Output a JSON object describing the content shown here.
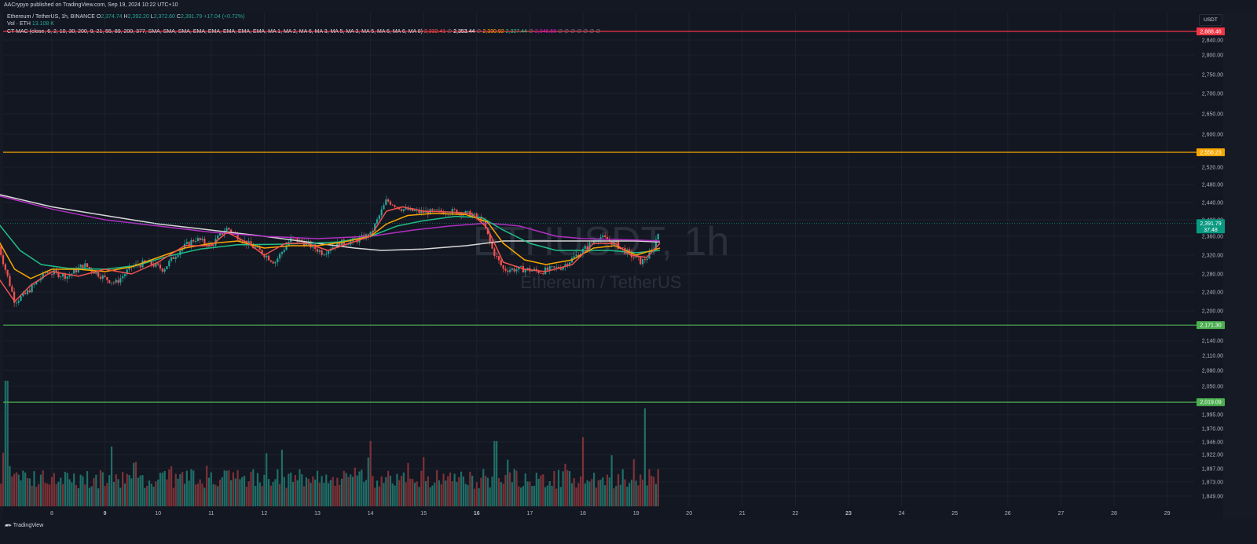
{
  "publisher": "AACrypyo published on TradingView.com, Sep 19, 2024 10:22 UTC+10",
  "legend": {
    "symbol": "Ethereum / TetherUS, 1h, BINANCE",
    "o_label": "O",
    "o": "2,374.74",
    "h_label": "H",
    "h": "2,392.20",
    "l_label": "L",
    "l": "2,372.60",
    "c_label": "C",
    "c": "2,391.79",
    "change": "+17.04 (+0.72%)",
    "vol_label": "Vol · ETH",
    "vol_value": "13.108 K",
    "ma_label": "CT MAC (close, 6, 2, 10, 30, 200, 9, 21, 55, 89, 200, 377, SMA, SMA, SMA, EMA, EMA, EMA, EMA, EMA, MA 1, MA 2, MA 6, MA 3, MA 5, MA 3, MA 5, MA 6, MA 6, MA 8)",
    "ma_values": [
      {
        "text": "2,332.41",
        "color": "#ef5350"
      },
      {
        "text": "∅",
        "color": "#787b86"
      },
      {
        "text": "2,353.44",
        "color": "#ffffff"
      },
      {
        "text": "∅",
        "color": "#787b86"
      },
      {
        "text": "2,330.92",
        "color": "#f7a600"
      },
      {
        "text": "2,327.44",
        "color": "#26c281"
      },
      {
        "text": "∅",
        "color": "#787b86"
      },
      {
        "text": "2,346.56",
        "color": "#c218c9"
      },
      {
        "text": "∅ ∅ ∅ ∅ ∅ ∅ ∅",
        "color": "#787b86"
      }
    ]
  },
  "currency_button": "USDT",
  "watermark": {
    "symbol": "ETHUSDT, 1h",
    "name": "Ethereum / TetherUS"
  },
  "footer_logo": "TradingView",
  "colors": {
    "up": "#26a69a",
    "down": "#ef5350",
    "background": "#131722"
  },
  "chart_data": {
    "type": "candlestick",
    "y_ticks": [
      "2,840.00",
      "2,800.00",
      "2,750.00",
      "2,700.00",
      "2,650.00",
      "2,600.00",
      "2,520.00",
      "2,480.00",
      "2,440.00",
      "2,400.00",
      "2,360.00",
      "2,320.00",
      "2,280.00",
      "2,240.00",
      "2,200.00",
      "2,140.00",
      "2,110.00",
      "2,080.00",
      "2,050.00",
      "1,995.00",
      "1,970.00",
      "1,946.00",
      "1,922.00",
      "1,897.00",
      "1,873.00",
      "1,849.00"
    ],
    "x_ticks": [
      "8",
      "9",
      "10",
      "11",
      "12",
      "13",
      "14",
      "15",
      "16",
      "17",
      "18",
      "19",
      "20",
      "21",
      "22",
      "23",
      "24",
      "25",
      "26",
      "27",
      "28",
      "29"
    ],
    "bold_x_ticks": [
      "9",
      "16",
      "23"
    ],
    "horizontal_levels": [
      {
        "value": 2888.46,
        "label": "2,888.46",
        "color": "#f23645"
      },
      {
        "value": 2556.23,
        "label": "2,556.23",
        "color": "#f7a600"
      },
      {
        "value": 2171.3,
        "label": "2,171.30",
        "color": "#4caf50"
      },
      {
        "value": 2019.09,
        "label": "2,019.09",
        "color": "#4caf50"
      }
    ],
    "last_price": {
      "label": "2,391.79",
      "countdown": "37:48",
      "color": "#089981"
    },
    "series": {
      "price_path": [
        [
          7.0,
          2340
        ],
        [
          7.3,
          2220
        ],
        [
          7.5,
          2235
        ],
        [
          7.9,
          2285
        ],
        [
          8.3,
          2275
        ],
        [
          8.6,
          2300
        ],
        [
          9.0,
          2270
        ],
        [
          9.2,
          2260
        ],
        [
          9.5,
          2295
        ],
        [
          9.8,
          2305
        ],
        [
          10.1,
          2290
        ],
        [
          10.4,
          2330
        ],
        [
          10.7,
          2355
        ],
        [
          11.0,
          2340
        ],
        [
          11.3,
          2380
        ],
        [
          11.6,
          2350
        ],
        [
          11.9,
          2330
        ],
        [
          12.2,
          2305
        ],
        [
          12.5,
          2355
        ],
        [
          12.8,
          2345
        ],
        [
          13.1,
          2325
        ],
        [
          13.4,
          2345
        ],
        [
          13.7,
          2350
        ],
        [
          14.0,
          2365
        ],
        [
          14.3,
          2445
        ],
        [
          14.6,
          2425
        ],
        [
          14.9,
          2418
        ],
        [
          15.3,
          2418
        ],
        [
          15.6,
          2420
        ],
        [
          15.9,
          2412
        ],
        [
          16.1,
          2400
        ],
        [
          16.3,
          2330
        ],
        [
          16.5,
          2290
        ],
        [
          16.9,
          2290
        ],
        [
          17.2,
          2285
        ],
        [
          17.6,
          2295
        ],
        [
          18.0,
          2330
        ],
        [
          18.3,
          2360
        ],
        [
          18.6,
          2345
        ],
        [
          18.9,
          2320
        ],
        [
          19.1,
          2305
        ],
        [
          19.3,
          2325
        ],
        [
          19.45,
          2380
        ]
      ],
      "ma_lines": [
        {
          "name": "white",
          "color": "#d8d8d8",
          "points": [
            [
              7.0,
              2458
            ],
            [
              8.0,
              2430
            ],
            [
              9.0,
              2410
            ],
            [
              10.0,
              2390
            ],
            [
              11.0,
              2375
            ],
            [
              12.0,
              2360
            ],
            [
              13.0,
              2345
            ],
            [
              13.7,
              2335
            ],
            [
              14.2,
              2330
            ],
            [
              15.0,
              2333
            ],
            [
              15.8,
              2340
            ],
            [
              16.5,
              2350
            ],
            [
              17.2,
              2350
            ],
            [
              18.0,
              2350
            ],
            [
              19.0,
              2350
            ],
            [
              19.45,
              2348
            ]
          ]
        },
        {
          "name": "purple",
          "color": "#b02fc0",
          "points": [
            [
              7.0,
              2455
            ],
            [
              8.0,
              2425
            ],
            [
              9.0,
              2400
            ],
            [
              10.0,
              2385
            ],
            [
              11.0,
              2370
            ],
            [
              12.0,
              2360
            ],
            [
              13.0,
              2355
            ],
            [
              14.0,
              2360
            ],
            [
              14.8,
              2375
            ],
            [
              15.5,
              2385
            ],
            [
              16.2,
              2392
            ],
            [
              16.8,
              2385
            ],
            [
              17.5,
              2360
            ],
            [
              18.0,
              2355
            ],
            [
              19.0,
              2352
            ],
            [
              19.45,
              2350
            ]
          ]
        },
        {
          "name": "green",
          "color": "#1fbf87",
          "points": [
            [
              7.0,
              2390
            ],
            [
              7.4,
              2330
            ],
            [
              7.8,
              2300
            ],
            [
              8.3,
              2292
            ],
            [
              9.0,
              2290
            ],
            [
              9.6,
              2298
            ],
            [
              10.2,
              2318
            ],
            [
              10.8,
              2333
            ],
            [
              11.5,
              2342
            ],
            [
              12.2,
              2343
            ],
            [
              12.8,
              2345
            ],
            [
              13.4,
              2348
            ],
            [
              14.0,
              2360
            ],
            [
              14.5,
              2385
            ],
            [
              15.0,
              2398
            ],
            [
              15.6,
              2408
            ],
            [
              16.1,
              2405
            ],
            [
              16.5,
              2375
            ],
            [
              17.0,
              2345
            ],
            [
              17.5,
              2330
            ],
            [
              18.0,
              2330
            ],
            [
              18.5,
              2330
            ],
            [
              19.0,
              2325
            ],
            [
              19.45,
              2330
            ]
          ]
        },
        {
          "name": "orange",
          "color": "#f7a600",
          "points": [
            [
              7.0,
              2350
            ],
            [
              7.3,
              2290
            ],
            [
              7.6,
              2270
            ],
            [
              8.0,
              2290
            ],
            [
              8.5,
              2290
            ],
            [
              9.0,
              2285
            ],
            [
              9.5,
              2295
            ],
            [
              10.0,
              2315
            ],
            [
              10.5,
              2335
            ],
            [
              11.0,
              2345
            ],
            [
              11.5,
              2350
            ],
            [
              12.0,
              2335
            ],
            [
              12.5,
              2340
            ],
            [
              13.0,
              2340
            ],
            [
              13.5,
              2348
            ],
            [
              14.0,
              2360
            ],
            [
              14.3,
              2390
            ],
            [
              14.7,
              2410
            ],
            [
              15.2,
              2415
            ],
            [
              15.8,
              2412
            ],
            [
              16.2,
              2395
            ],
            [
              16.5,
              2345
            ],
            [
              16.9,
              2310
            ],
            [
              17.3,
              2300
            ],
            [
              17.8,
              2310
            ],
            [
              18.2,
              2335
            ],
            [
              18.6,
              2340
            ],
            [
              19.0,
              2320
            ],
            [
              19.45,
              2335
            ]
          ]
        },
        {
          "name": "red",
          "color": "#ef5350",
          "points": [
            [
              7.0,
              2270
            ],
            [
              7.3,
              2220
            ],
            [
              7.6,
              2255
            ],
            [
              8.0,
              2285
            ],
            [
              8.5,
              2275
            ],
            [
              9.0,
              2290
            ],
            [
              9.5,
              2280
            ],
            [
              10.0,
              2305
            ],
            [
              10.5,
              2340
            ],
            [
              11.0,
              2340
            ],
            [
              11.3,
              2370
            ],
            [
              11.7,
              2345
            ],
            [
              12.0,
              2320
            ],
            [
              12.4,
              2345
            ],
            [
              12.8,
              2345
            ],
            [
              13.2,
              2330
            ],
            [
              13.6,
              2345
            ],
            [
              14.0,
              2360
            ],
            [
              14.3,
              2420
            ],
            [
              14.6,
              2430
            ],
            [
              15.0,
              2420
            ],
            [
              15.5,
              2418
            ],
            [
              15.9,
              2415
            ],
            [
              16.2,
              2380
            ],
            [
              16.5,
              2305
            ],
            [
              16.9,
              2290
            ],
            [
              17.3,
              2285
            ],
            [
              17.8,
              2300
            ],
            [
              18.2,
              2345
            ],
            [
              18.6,
              2345
            ],
            [
              18.9,
              2320
            ],
            [
              19.2,
              2315
            ],
            [
              19.45,
              2345
            ]
          ]
        }
      ]
    },
    "volume": {
      "peaks": [
        {
          "x": 7.15,
          "v": 1.0
        },
        {
          "x": 19.15,
          "v": 0.78
        },
        {
          "x": 16.35,
          "v": 0.52
        },
        {
          "x": 18.0,
          "v": 0.55
        },
        {
          "x": 14.0,
          "v": 0.52
        }
      ],
      "baseline": 0.14
    }
  }
}
